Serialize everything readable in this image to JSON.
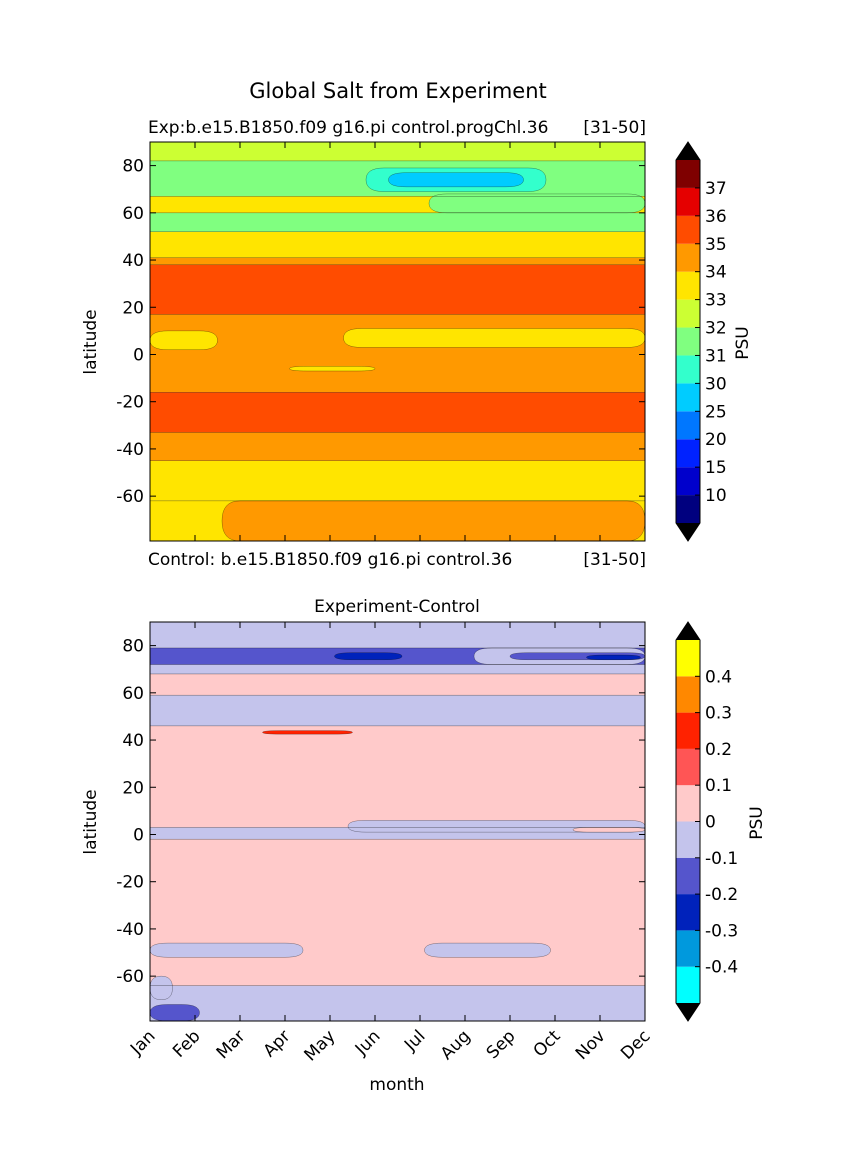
{
  "figure_title": "Global Salt from Experiment",
  "chart_data": [
    {
      "type": "contour",
      "panel": "top",
      "title_left": "Exp:b.e15.B1850.f09 g16.pi control.progChl.36",
      "title_right": "[31-50]",
      "subtitle_left": "Control: b.e15.B1850.f09 g16.pi control.36",
      "subtitle_right": "[31-50]",
      "ylabel": "latitude",
      "xlabel": "",
      "yticks": [
        80,
        60,
        40,
        20,
        0,
        -20,
        -40,
        -60
      ],
      "ylim": [
        -79,
        90
      ],
      "xlim": [
        0,
        11
      ],
      "x_months": [
        "Jan",
        "Feb",
        "Mar",
        "Apr",
        "May",
        "Jun",
        "Jul",
        "Aug",
        "Sep",
        "Oct",
        "Nov",
        "Dec"
      ],
      "colorbar": {
        "label": "PSU",
        "levels": [
          "10",
          "15",
          "20",
          "25",
          "30",
          "31",
          "32",
          "33",
          "34",
          "35",
          "36",
          "37"
        ],
        "colors": [
          "#00007f",
          "#0000cc",
          "#0022ff",
          "#0077ff",
          "#00ccff",
          "#33ffcc",
          "#80ff80",
          "#ccff33",
          "#ffe500",
          "#ff9900",
          "#ff4c00",
          "#e50000",
          "#7f0000"
        ],
        "extend": "both",
        "under_color": "#000000",
        "over_color": "#000000"
      },
      "bands": [
        {
          "from": -79,
          "to": -62,
          "value": "33-34",
          "color": "#ffe500"
        },
        {
          "from": -62,
          "to": -45,
          "value": "33-34",
          "color": "#ffe500"
        },
        {
          "from": -45,
          "to": -33,
          "value": "34-35",
          "color": "#ff9900"
        },
        {
          "from": -33,
          "to": -16,
          "value": "35-36",
          "color": "#ff4c00"
        },
        {
          "from": -16,
          "to": 17,
          "value": "34-35",
          "color": "#ff9900"
        },
        {
          "from": 17,
          "to": 38,
          "value": "35-36",
          "color": "#ff4c00"
        },
        {
          "from": 38,
          "to": 41,
          "value": "34-35",
          "color": "#ff9900"
        },
        {
          "from": 41,
          "to": 52,
          "value": "33-34",
          "color": "#ffe500"
        },
        {
          "from": 52,
          "to": 60,
          "value": "31-32",
          "color": "#80ff80"
        },
        {
          "from": 60,
          "to": 67,
          "value": "33-34",
          "color": "#ffe500"
        },
        {
          "from": 67,
          "to": 82,
          "value": "31-32",
          "color": "#80ff80"
        },
        {
          "from": 82,
          "to": 90,
          "value": "32-33",
          "color": "#ccff33"
        }
      ],
      "patches": [
        {
          "x0": 4.8,
          "x1": 8.8,
          "y0": 69,
          "y1": 79,
          "value": "30-31",
          "color": "#33ffcc"
        },
        {
          "x0": 5.3,
          "x1": 8.3,
          "y0": 71,
          "y1": 77,
          "value": "25-30",
          "color": "#00ccff"
        },
        {
          "x0": 6.2,
          "x1": 11,
          "y0": 60,
          "y1": 68,
          "value": "31-32",
          "color": "#80ff80"
        },
        {
          "x0": 0,
          "x1": 1.5,
          "y0": 2,
          "y1": 10,
          "value": "33-34",
          "color": "#ffe500"
        },
        {
          "x0": 4.3,
          "x1": 11,
          "y0": 3,
          "y1": 11,
          "value": "33-34",
          "color": "#ffe500"
        },
        {
          "x0": 3.1,
          "x1": 5.0,
          "y0": -7,
          "y1": -5,
          "value": "33-34",
          "color": "#ffe500"
        },
        {
          "x0": 1.6,
          "x1": 11,
          "y0": -79,
          "y1": -62,
          "value": "34-35",
          "color": "#ff9900"
        }
      ]
    },
    {
      "type": "contour",
      "panel": "bottom",
      "title": "Experiment-Control",
      "ylabel": "latitude",
      "xlabel": "month",
      "yticks": [
        80,
        60,
        40,
        20,
        0,
        -20,
        -40,
        -60
      ],
      "ylim": [
        -79,
        90
      ],
      "xlim": [
        0,
        11
      ],
      "x_months": [
        "Jan",
        "Feb",
        "Mar",
        "Apr",
        "May",
        "Jun",
        "Jul",
        "Aug",
        "Sep",
        "Oct",
        "Nov",
        "Dec"
      ],
      "colorbar": {
        "label": "PSU",
        "levels": [
          "-0.4",
          "-0.3",
          "-0.2",
          "-0.1",
          "0",
          "0.1",
          "0.2",
          "0.3",
          "0.4"
        ],
        "colors": [
          "#00ffff",
          "#0099dd",
          "#0022bb",
          "#5555cc",
          "#c4c4ec",
          "#ffcaca",
          "#ff5555",
          "#ff2200",
          "#ff8800",
          "#ffff00"
        ],
        "extend": "both",
        "under_color": "#000000",
        "over_color": "#000000"
      },
      "bands": [
        {
          "from": -79,
          "to": -64,
          "value": "-0.1-0",
          "color": "#c4c4ec"
        },
        {
          "from": -64,
          "to": -2,
          "value": "0-0.1",
          "color": "#ffcaca"
        },
        {
          "from": -2,
          "to": 3,
          "value": "-0.1-0",
          "color": "#c4c4ec"
        },
        {
          "from": 3,
          "to": 46,
          "value": "0-0.1",
          "color": "#ffcaca"
        },
        {
          "from": 46,
          "to": 59,
          "value": "-0.1-0",
          "color": "#c4c4ec"
        },
        {
          "from": 59,
          "to": 68,
          "value": "0-0.1",
          "color": "#ffcaca"
        },
        {
          "from": 68,
          "to": 72,
          "value": "-0.1-0",
          "color": "#c4c4ec"
        },
        {
          "from": 72,
          "to": 79,
          "value": "-0.2--0.1",
          "color": "#5555cc"
        },
        {
          "from": 79,
          "to": 90,
          "value": "-0.1-0",
          "color": "#c4c4ec"
        }
      ],
      "patches": [
        {
          "x0": 7.2,
          "x1": 11,
          "y0": 72,
          "y1": 79,
          "value": "-0.1-0",
          "color": "#c4c4ec"
        },
        {
          "x0": 8.0,
          "x1": 11,
          "y0": 74,
          "y1": 77,
          "value": "-0.2--0.1",
          "color": "#5555cc"
        },
        {
          "x0": 4.1,
          "x1": 5.6,
          "y0": 74,
          "y1": 77,
          "value": "-0.3--0.2",
          "color": "#0022bb"
        },
        {
          "x0": 9.7,
          "x1": 10.9,
          "y0": 74,
          "y1": 76,
          "value": "-0.3--0.2",
          "color": "#0022bb"
        },
        {
          "x0": 4.4,
          "x1": 11,
          "y0": 1,
          "y1": 6,
          "value": "-0.1-0",
          "color": "#c4c4ec"
        },
        {
          "x0": 9.4,
          "x1": 11,
          "y0": 1,
          "y1": 3,
          "value": "0-0.1",
          "color": "#ffcaca"
        },
        {
          "x0": 2.5,
          "x1": 4.5,
          "y0": 42.5,
          "y1": 44,
          "value": "0.2-0.3",
          "color": "#ff2200"
        },
        {
          "x0": 0,
          "x1": 3.4,
          "y0": -52,
          "y1": -46,
          "value": "-0.1-0",
          "color": "#c4c4ec"
        },
        {
          "x0": 6.1,
          "x1": 8.9,
          "y0": -52,
          "y1": -46,
          "value": "-0.1-0",
          "color": "#c4c4ec"
        },
        {
          "x0": 0,
          "x1": 1.1,
          "y0": -79,
          "y1": -72,
          "value": "-0.2--0.1",
          "color": "#5555cc"
        },
        {
          "x0": 0,
          "x1": 0.5,
          "y0": -70,
          "y1": -60,
          "value": "-0.1-0",
          "color": "#c4c4ec"
        }
      ]
    }
  ]
}
